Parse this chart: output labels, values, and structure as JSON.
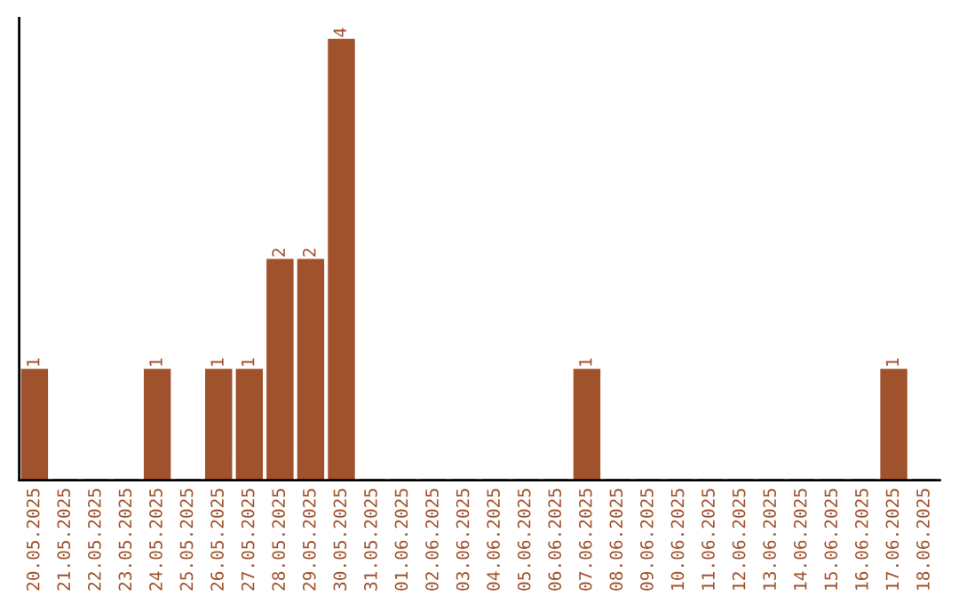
{
  "chart_data": {
    "type": "bar",
    "categories": [
      "20.05.2025",
      "21.05.2025",
      "22.05.2025",
      "23.05.2025",
      "24.05.2025",
      "25.05.2025",
      "26.05.2025",
      "27.05.2025",
      "28.05.2025",
      "29.05.2025",
      "30.05.2025",
      "31.05.2025",
      "01.06.2025",
      "02.06.2025",
      "03.06.2025",
      "04.06.2025",
      "05.06.2025",
      "06.06.2025",
      "07.06.2025",
      "08.06.2025",
      "09.06.2025",
      "10.06.2025",
      "11.06.2025",
      "12.06.2025",
      "13.06.2025",
      "14.06.2025",
      "15.06.2025",
      "16.06.2025",
      "17.06.2025",
      "18.06.2025"
    ],
    "values": [
      1,
      0,
      0,
      0,
      1,
      0,
      1,
      1,
      2,
      2,
      4,
      0,
      0,
      0,
      0,
      0,
      0,
      0,
      1,
      0,
      0,
      0,
      0,
      0,
      0,
      0,
      0,
      0,
      1,
      0
    ],
    "value_labels": [
      "1",
      null,
      null,
      null,
      "1",
      null,
      "1",
      "1",
      "2",
      "2",
      "4",
      null,
      null,
      null,
      null,
      null,
      null,
      null,
      "1",
      null,
      null,
      null,
      null,
      null,
      null,
      null,
      null,
      null,
      "1",
      null
    ],
    "color": "#a0522d",
    "ylim": [
      0,
      4.2
    ],
    "tick_labels": "x",
    "grid": false,
    "legend": false
  }
}
